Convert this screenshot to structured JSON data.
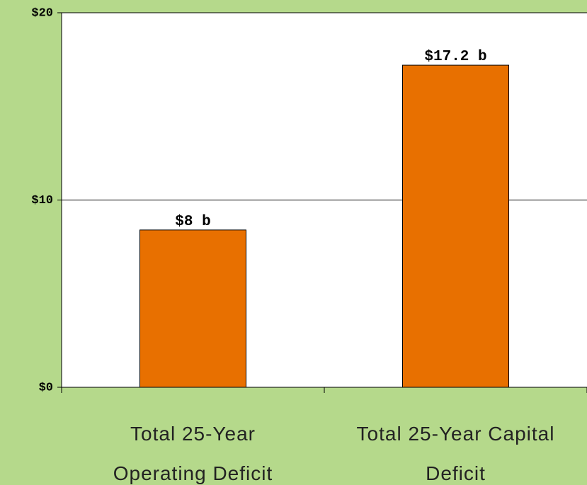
{
  "chart_data": {
    "type": "bar",
    "categories": [
      "Total 25-Year Operating Deficit",
      "Total 25-Year Capital Deficit"
    ],
    "values": [
      8.4,
      17.2
    ],
    "value_labels": [
      "$8 b",
      "$17.2 b"
    ],
    "color": "#e87000",
    "ylim": [
      0,
      20
    ],
    "yticks": [
      {
        "value": 0,
        "label": "$0"
      },
      {
        "value": 10,
        "label": "$10"
      },
      {
        "value": 20,
        "label": "$20"
      }
    ],
    "grid": true
  }
}
